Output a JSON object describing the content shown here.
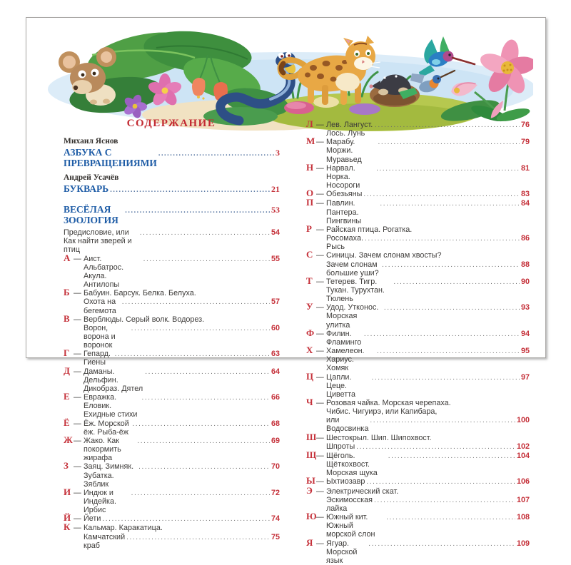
{
  "colors": {
    "accent_red": "#c5313a",
    "accent_blue": "#1e5ca6",
    "body_text": "#3d3b39"
  },
  "illustration": {
    "description": "watercolor strip with animals and flowers",
    "elements": [
      "mouse-icon",
      "leaves-icon",
      "snake-icon",
      "bell-flowers-icon",
      "pink-flower-icon",
      "purple-flower-icon",
      "leopard-cub-icon",
      "mole-icon",
      "hummingbird-icon",
      "hummingbird-small-icon",
      "lily-flowers-icon",
      "pebbles-icon"
    ]
  },
  "toc": {
    "heading": "СОДЕРЖАНИЕ",
    "front_items": [
      {
        "type": "author",
        "text": "Михаил Яснов"
      },
      {
        "type": "work",
        "text": "АЗБУКА С ПРЕВРАЩЕНИЯМИ",
        "page": "3"
      },
      {
        "type": "author",
        "text": "Андрей Усачёв"
      },
      {
        "type": "work",
        "text": "БУКВАРЬ",
        "page": "21"
      },
      {
        "type": "work",
        "text": "ВЕСЁЛАЯ ЗООЛОГИЯ",
        "page": "53",
        "gap_before": true
      },
      {
        "type": "plain",
        "text": "Предисловие, или Как найти зверей и птиц",
        "page": "54"
      }
    ],
    "left_entries": [
      {
        "letter": "А",
        "lines": [
          "Аист. Альбатрос. Акула. Антилопы"
        ],
        "page": "55"
      },
      {
        "letter": "Б",
        "lines": [
          "Бабуин. Барсук. Белка. Белуха.",
          "Охота на бегемота"
        ],
        "page": "57"
      },
      {
        "letter": "В",
        "lines": [
          "Верблюды. Серый волк. Водорез.",
          "Ворон, ворона и воронок"
        ],
        "page": "60"
      },
      {
        "letter": "Г",
        "lines": [
          "Гепард. Гиены"
        ],
        "page": "63"
      },
      {
        "letter": "Д",
        "lines": [
          "Даманы. Дельфин. Дикобраз. Дятел"
        ],
        "page": "64"
      },
      {
        "letter": "Е",
        "lines": [
          "Евражка. Еловик. Ехидные стихи"
        ],
        "page": "66"
      },
      {
        "letter": "Ё",
        "lines": [
          "Ёж. Морской ёж. Рыба-ёж"
        ],
        "page": "68"
      },
      {
        "letter": "Ж",
        "lines": [
          "Жако. Как покормить жирафа"
        ],
        "page": "69"
      },
      {
        "letter": "З",
        "lines": [
          "Заяц. Зимняк. Зубатка. Зяблик"
        ],
        "page": "70"
      },
      {
        "letter": "И",
        "lines": [
          "Индюк и Индейка. Ирбис"
        ],
        "page": "72"
      },
      {
        "letter": "Й",
        "lines": [
          "Йети"
        ],
        "page": "74"
      },
      {
        "letter": "К",
        "lines": [
          "Кальмар. Каракатица.",
          "Камчатский краб"
        ],
        "page": "75"
      }
    ],
    "right_entries": [
      {
        "letter": "Л",
        "lines": [
          "Лев. Лангуст. Лось. Лунь"
        ],
        "page": "76"
      },
      {
        "letter": "М",
        "lines": [
          "Марабу. Моржи. Муравьед"
        ],
        "page": "79"
      },
      {
        "letter": "Н",
        "lines": [
          "Нарвал. Норка. Носороги"
        ],
        "page": "81"
      },
      {
        "letter": "О",
        "lines": [
          "Обезьяны"
        ],
        "page": "83"
      },
      {
        "letter": "П",
        "lines": [
          "Павлин. Пантера. Пингвины"
        ],
        "page": "84"
      },
      {
        "letter": "Р",
        "lines": [
          "Райская птица. Рогатка.",
          "Росомаха. Рысь"
        ],
        "page": "86"
      },
      {
        "letter": "С",
        "lines": [
          "Синицы. Зачем слонам хвосты?",
          "Зачем слонам большие уши?"
        ],
        "page": "88"
      },
      {
        "letter": "Т",
        "lines": [
          "Тетерев. Тигр. Тукан. Турухтан. Тюлень"
        ],
        "page": "90"
      },
      {
        "letter": "У",
        "lines": [
          "Удод. Утконос. Морская улитка"
        ],
        "page": "93"
      },
      {
        "letter": "Ф",
        "lines": [
          "Филин. Фламинго"
        ],
        "page": "94"
      },
      {
        "letter": "Х",
        "lines": [
          "Хамелеон. Хариус. Хомяк"
        ],
        "page": "95"
      },
      {
        "letter": "Ц",
        "lines": [
          "Цапли. Цеце. Циветта"
        ],
        "page": "97"
      },
      {
        "letter": "Ч",
        "lines": [
          "Розовая чайка. Морская черепаха.",
          "Чибис. Чигуирэ, или Капибара,",
          "или Водосвинка"
        ],
        "page": "100"
      },
      {
        "letter": "Ш",
        "lines": [
          "Шестокрыл. Шип. Шипохвост.",
          "Шпроты"
        ],
        "page": "102"
      },
      {
        "letter": "Щ",
        "lines": [
          "Щёголь. Щёткохвост. Морская щука"
        ],
        "page": "104"
      },
      {
        "letter": "Ы",
        "lines": [
          "Ыхтиозавр"
        ],
        "page": "106"
      },
      {
        "letter": "Э",
        "lines": [
          "Электрический скат.",
          "Эскимосская лайка"
        ],
        "page": "107"
      },
      {
        "letter": "Ю",
        "lines": [
          "Южный кит. Южный морской слон"
        ],
        "page": "108"
      },
      {
        "letter": "Я",
        "lines": [
          "Ягуар. Морской язык"
        ],
        "page": "109"
      }
    ]
  }
}
